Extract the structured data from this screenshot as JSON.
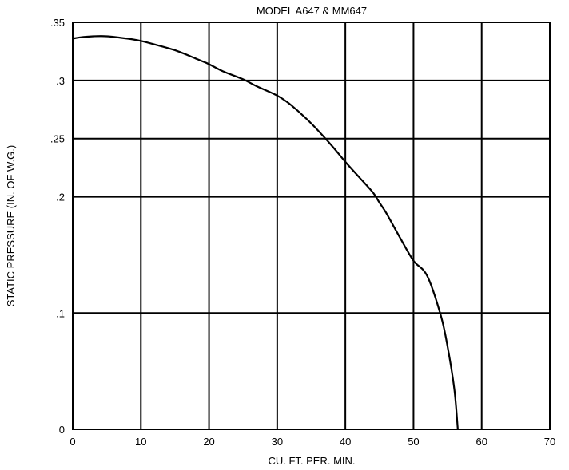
{
  "chart_data": {
    "type": "line",
    "title": "MODEL A647 & MM647",
    "xlabel": "CU. FT. PER. MIN.",
    "ylabel": "STATIC PRESSURE (IN. OF W.G.)",
    "xlim": [
      0,
      70
    ],
    "ylim": [
      0,
      0.35
    ],
    "x_ticks": [
      0,
      10,
      20,
      30,
      40,
      50,
      60,
      70
    ],
    "x_tick_labels": [
      "0",
      "10",
      "20",
      "30",
      "40",
      "50",
      "60",
      "70"
    ],
    "y_ticks": [
      0,
      0.1,
      0.2,
      0.25,
      0.3,
      0.35
    ],
    "y_tick_labels": [
      "0",
      ".1",
      ".2",
      ".25",
      ".3",
      ".35"
    ],
    "grid": true,
    "series": [
      {
        "x": [
          0,
          1,
          3,
          5,
          8,
          10,
          12,
          15,
          18,
          20,
          22,
          25,
          27,
          30,
          32,
          35,
          38,
          40,
          42,
          44,
          45,
          46,
          48,
          50,
          52,
          54,
          55,
          56,
          56.5
        ],
        "y": [
          0.336,
          0.337,
          0.338,
          0.338,
          0.336,
          0.334,
          0.331,
          0.326,
          0.319,
          0.314,
          0.308,
          0.301,
          0.295,
          0.287,
          0.279,
          0.263,
          0.244,
          0.23,
          0.217,
          0.204,
          0.195,
          0.186,
          0.165,
          0.145,
          0.132,
          0.098,
          0.071,
          0.034,
          0.0
        ]
      }
    ]
  }
}
